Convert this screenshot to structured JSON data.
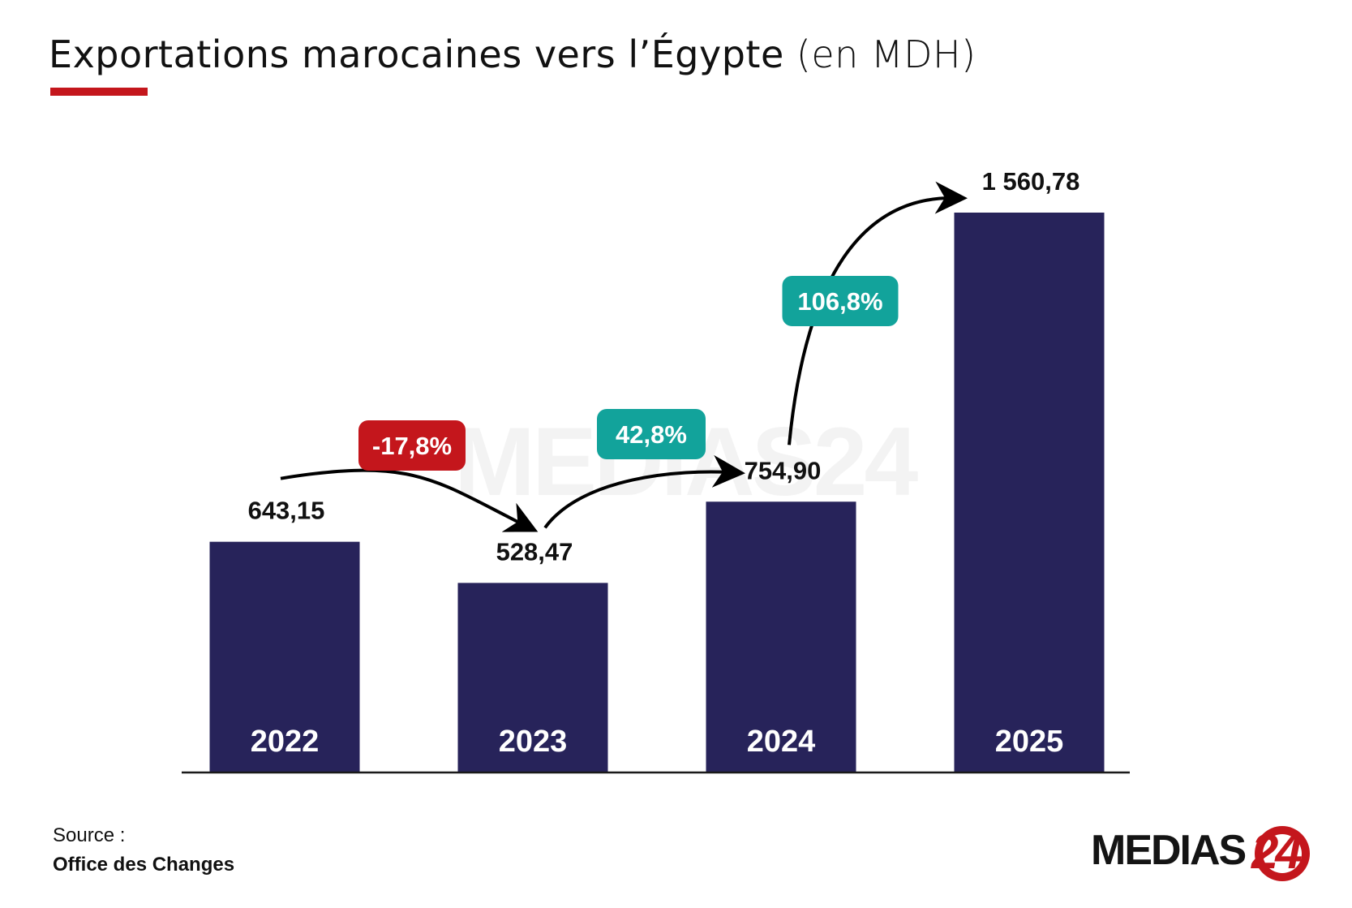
{
  "title": {
    "main": "Exportations marocaines vers l’Égypte",
    "unit": "(en MDH)"
  },
  "source": {
    "label": "Source :",
    "name": "Office des Changes"
  },
  "logo": {
    "text": "MEDIAS",
    "number": "24"
  },
  "colors": {
    "bar": "#27235a",
    "accent_red": "#c4161c",
    "badge_teal": "#12a39b",
    "badge_red": "#c4161c",
    "arrow": "#000000"
  },
  "chart_data": {
    "type": "bar",
    "title": "Exportations marocaines vers l’Égypte (en MDH)",
    "categories": [
      "2022",
      "2023",
      "2024",
      "2025"
    ],
    "values": [
      643.15,
      528.47,
      754.9,
      1560.78
    ],
    "value_labels": [
      "643,15",
      "528,47",
      "754,90",
      "1 560,78"
    ],
    "ylim": [
      0,
      1560.78
    ],
    "grid": false,
    "legend": "none",
    "annotations": [
      {
        "from": "2022",
        "to": "2023",
        "label": "-17,8%",
        "color": "#c4161c"
      },
      {
        "from": "2023",
        "to": "2024",
        "label": "42,8%",
        "color": "#12a39b"
      },
      {
        "from": "2024",
        "to": "2025",
        "label": "106,8%",
        "color": "#12a39b"
      }
    ]
  }
}
